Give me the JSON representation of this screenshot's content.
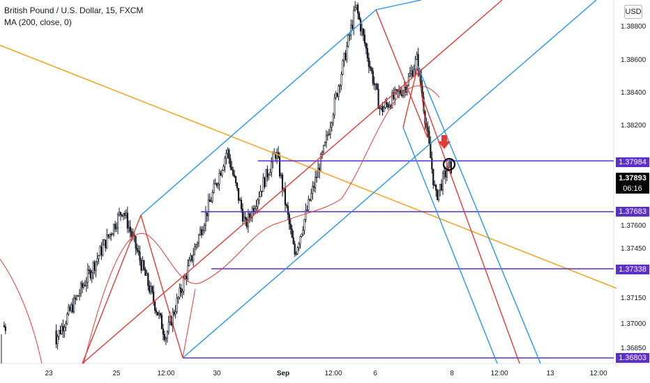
{
  "legend": {
    "symbol": "British Pound / U.S. Dollar, 15, FXCM",
    "indicator": "MA (200, close, 0)"
  },
  "currency_button": "USD",
  "chart_data": {
    "type": "candlestick",
    "title": "British Pound / U.S. Dollar, 15, FXCM",
    "ylim": [
      1.3665,
      1.3895
    ],
    "price_ticks": [
      "1.38800",
      "1.38600",
      "1.38400",
      "1.38200",
      "1.37600",
      "1.37450",
      "1.37150",
      "1.37000",
      "1.36850"
    ],
    "time_ticks": [
      "23",
      "25",
      "12:00",
      "30",
      "Sep",
      "12:00",
      "6",
      "8",
      "12:00",
      "13",
      "12:00"
    ],
    "major_time_ticks": [
      "Sep"
    ],
    "horizontal_levels": [
      {
        "label": "1.37984",
        "value": 1.37984
      },
      {
        "label": "1.37683",
        "value": 1.37683
      },
      {
        "label": "1.37338",
        "value": 1.37338
      },
      {
        "label": "1.36803",
        "value": 1.36803
      }
    ],
    "last_price": {
      "label": "1.37893",
      "value": 1.37893
    },
    "countdown": "06:16",
    "swing_points": [
      {
        "t": 0.09,
        "price": 1.368
      },
      {
        "t": 0.2,
        "price": 1.3763
      },
      {
        "t": 0.27,
        "price": 1.3682
      },
      {
        "t": 0.37,
        "price": 1.38
      },
      {
        "t": 0.4,
        "price": 1.3752
      },
      {
        "t": 0.45,
        "price": 1.3799
      },
      {
        "t": 0.48,
        "price": 1.3734
      },
      {
        "t": 0.53,
        "price": 1.3803
      },
      {
        "t": 0.58,
        "price": 1.3891
      },
      {
        "t": 0.62,
        "price": 1.3825
      },
      {
        "t": 0.66,
        "price": 1.384
      },
      {
        "t": 0.68,
        "price": 1.3858
      },
      {
        "t": 0.71,
        "price": 1.377
      },
      {
        "t": 0.73,
        "price": 1.3789
      }
    ],
    "moving_average": {
      "name": "MA (200, close, 0)",
      "color": "#e53935"
    },
    "colors": {
      "up": "#131722",
      "down": "#131722",
      "levels": "#5b2fc9",
      "pitchfork_up": "#2196f3",
      "median": "#e53935",
      "trendline": "#f5a623",
      "arrow": "#e53935"
    }
  }
}
